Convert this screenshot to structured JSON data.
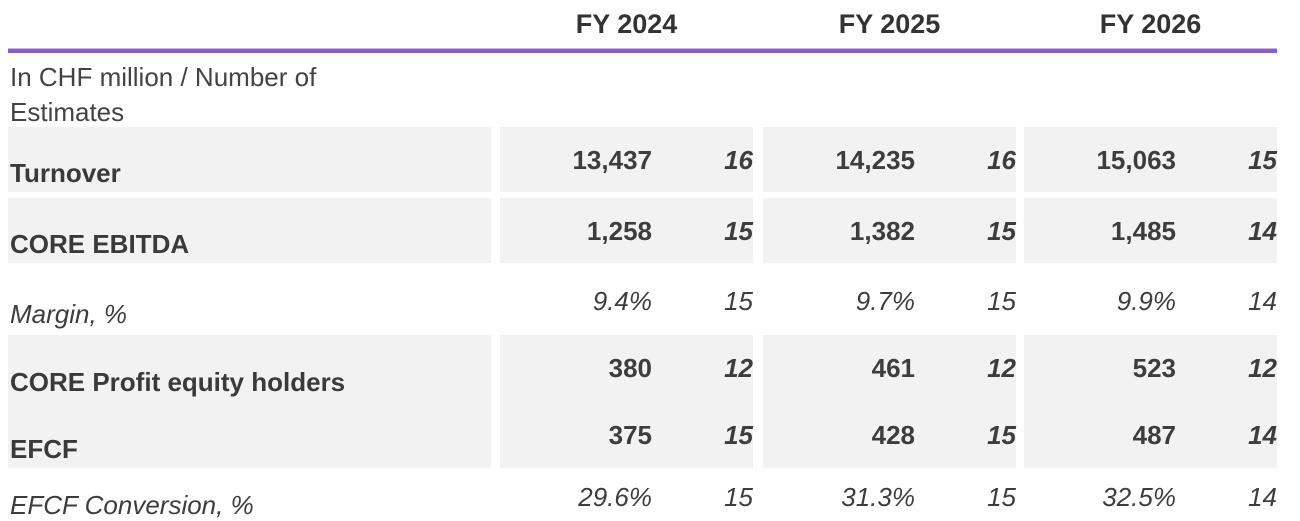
{
  "table": {
    "unit_label": "In CHF million / Number of Estimates",
    "columns": [
      {
        "label": "FY 2024"
      },
      {
        "label": "FY 2025"
      },
      {
        "label": "FY 2026"
      }
    ],
    "rows": [
      {
        "label": "Turnover",
        "style": "bold",
        "values": [
          "13,437",
          "14,235",
          "15,063"
        ],
        "estimates": [
          "16",
          "16",
          "15"
        ]
      },
      {
        "label": "CORE EBITDA",
        "style": "bold",
        "values": [
          "1,258",
          "1,382",
          "1,485"
        ],
        "estimates": [
          "15",
          "15",
          "14"
        ]
      },
      {
        "label": "Margin, %",
        "style": "italic",
        "values": [
          "9.4%",
          "9.7%",
          "9.9%"
        ],
        "estimates": [
          "15",
          "15",
          "14"
        ]
      },
      {
        "label": "CORE Profit equity holders",
        "style": "bold",
        "values": [
          "380",
          "461",
          "523"
        ],
        "estimates": [
          "12",
          "12",
          "12"
        ]
      },
      {
        "label": "EFCF",
        "style": "bold",
        "values": [
          "375",
          "428",
          "487"
        ],
        "estimates": [
          "15",
          "15",
          "14"
        ]
      },
      {
        "label": "EFCF Conversion, %",
        "style": "italic",
        "values": [
          "29.6%",
          "31.3%",
          "32.5%"
        ],
        "estimates": [
          "15",
          "15",
          "14"
        ]
      }
    ],
    "colors": {
      "accent_line": "#8a5ecb",
      "row_stripe": "#f2f2f2",
      "text": "#3d3d3d"
    }
  }
}
